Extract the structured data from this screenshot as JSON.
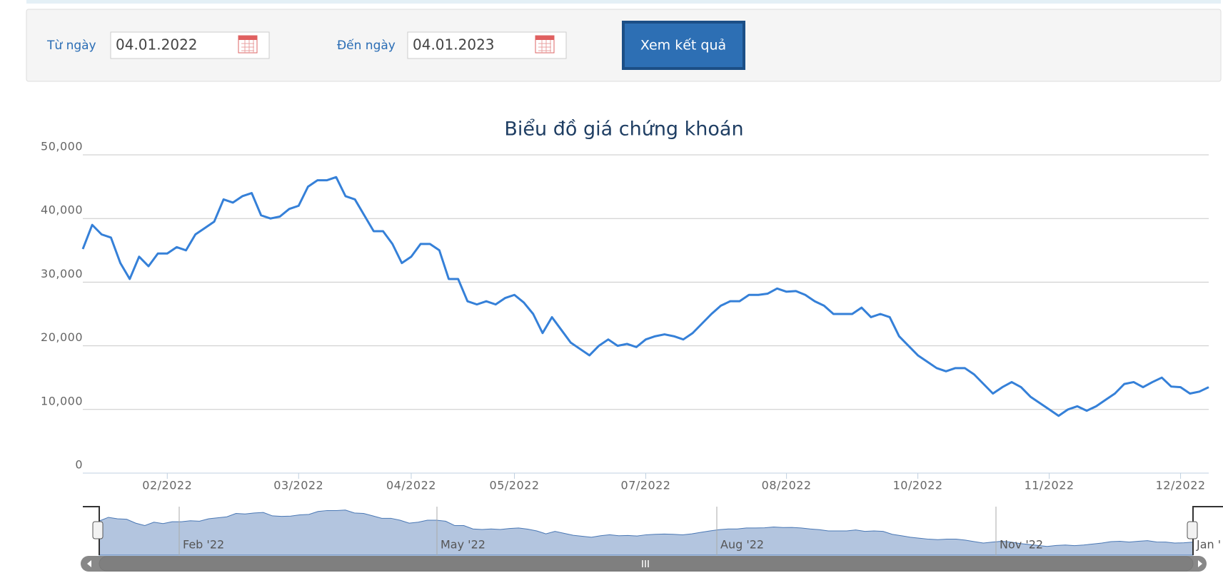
{
  "form": {
    "from_label": "Từ ngày",
    "from_value": "04.01.2022",
    "to_label": "Đến ngày",
    "to_value": "04.01.2023",
    "button": "Xem kết quả"
  },
  "chart_data": {
    "type": "line",
    "title": "Biểu đồ giá chứng khoán",
    "categories": [
      null,
      null,
      null,
      null,
      null,
      null,
      null,
      null,
      null,
      "02/2022",
      null,
      null,
      null,
      null,
      null,
      null,
      null,
      null,
      null,
      null,
      null,
      null,
      null,
      "03/2022",
      null,
      null,
      null,
      null,
      null,
      null,
      null,
      null,
      null,
      null,
      null,
      "04/2022",
      null,
      null,
      null,
      null,
      null,
      null,
      null,
      null,
      null,
      null,
      "05/2022",
      null,
      null,
      null,
      null,
      null,
      null,
      null,
      null,
      null,
      null,
      null,
      null,
      null,
      "07/2022",
      null,
      null,
      null,
      null,
      null,
      null,
      null,
      null,
      null,
      null,
      null,
      null,
      null,
      null,
      "08/2022",
      null,
      null,
      null,
      null,
      null,
      null,
      null,
      null,
      null,
      null,
      null,
      null,
      null,
      "10/2022",
      null,
      null,
      null,
      null,
      null,
      null,
      null,
      null,
      null,
      null,
      null,
      null,
      null,
      "11/2022",
      null,
      null,
      null,
      null,
      null,
      null,
      null,
      null,
      null,
      null,
      null,
      null,
      null,
      "12/2022",
      null,
      null,
      null
    ],
    "series": [
      {
        "name": "Giá",
        "color": "#3580d8",
        "values": [
          35200,
          39000,
          37500,
          37000,
          33000,
          30500,
          34000,
          32500,
          34500,
          34500,
          35500,
          35000,
          37500,
          38500,
          39500,
          43000,
          42500,
          43500,
          44000,
          40500,
          40000,
          40300,
          41500,
          42000,
          45000,
          46000,
          46000,
          46500,
          43500,
          43000,
          40500,
          38000,
          38000,
          36000,
          33000,
          34000,
          36000,
          36000,
          35000,
          30500,
          30500,
          27000,
          26500,
          27000,
          26500,
          27500,
          28000,
          26800,
          25000,
          22000,
          24500,
          22500,
          20500,
          19500,
          18500,
          20000,
          21000,
          20000,
          20300,
          19800,
          21000,
          21500,
          21800,
          21500,
          21000,
          22000,
          23500,
          25000,
          26300,
          27000,
          27000,
          28000,
          28000,
          28200,
          29000,
          28500,
          28600,
          28000,
          27000,
          26300,
          25000,
          25000,
          25000,
          26000,
          24500,
          25000,
          24500,
          21500,
          20000,
          18500,
          17500,
          16500,
          16000,
          16500,
          16500,
          15500,
          14000,
          12500,
          13500,
          14300,
          13500,
          12000,
          11000,
          10000,
          9000,
          10000,
          10500,
          9800,
          10500,
          11500,
          12500,
          14000,
          14300,
          13500,
          14300,
          15000,
          13600,
          13500,
          12500,
          12800,
          13500
        ]
      }
    ],
    "ylim": [
      0,
      50000
    ],
    "yticks": [
      0,
      {
        "value": 10000,
        "label": "10,000"
      },
      {
        "value": 20000,
        "label": "20,000"
      },
      {
        "value": 30000,
        "label": "30,000"
      },
      {
        "value": 40000,
        "label": "40,000"
      },
      {
        "value": 50000,
        "label": "50,000"
      }
    ],
    "grid": true,
    "navigator_labels": [
      "Feb '22",
      "May '22",
      "Aug '22",
      "Nov '22",
      "Jan '"
    ]
  }
}
